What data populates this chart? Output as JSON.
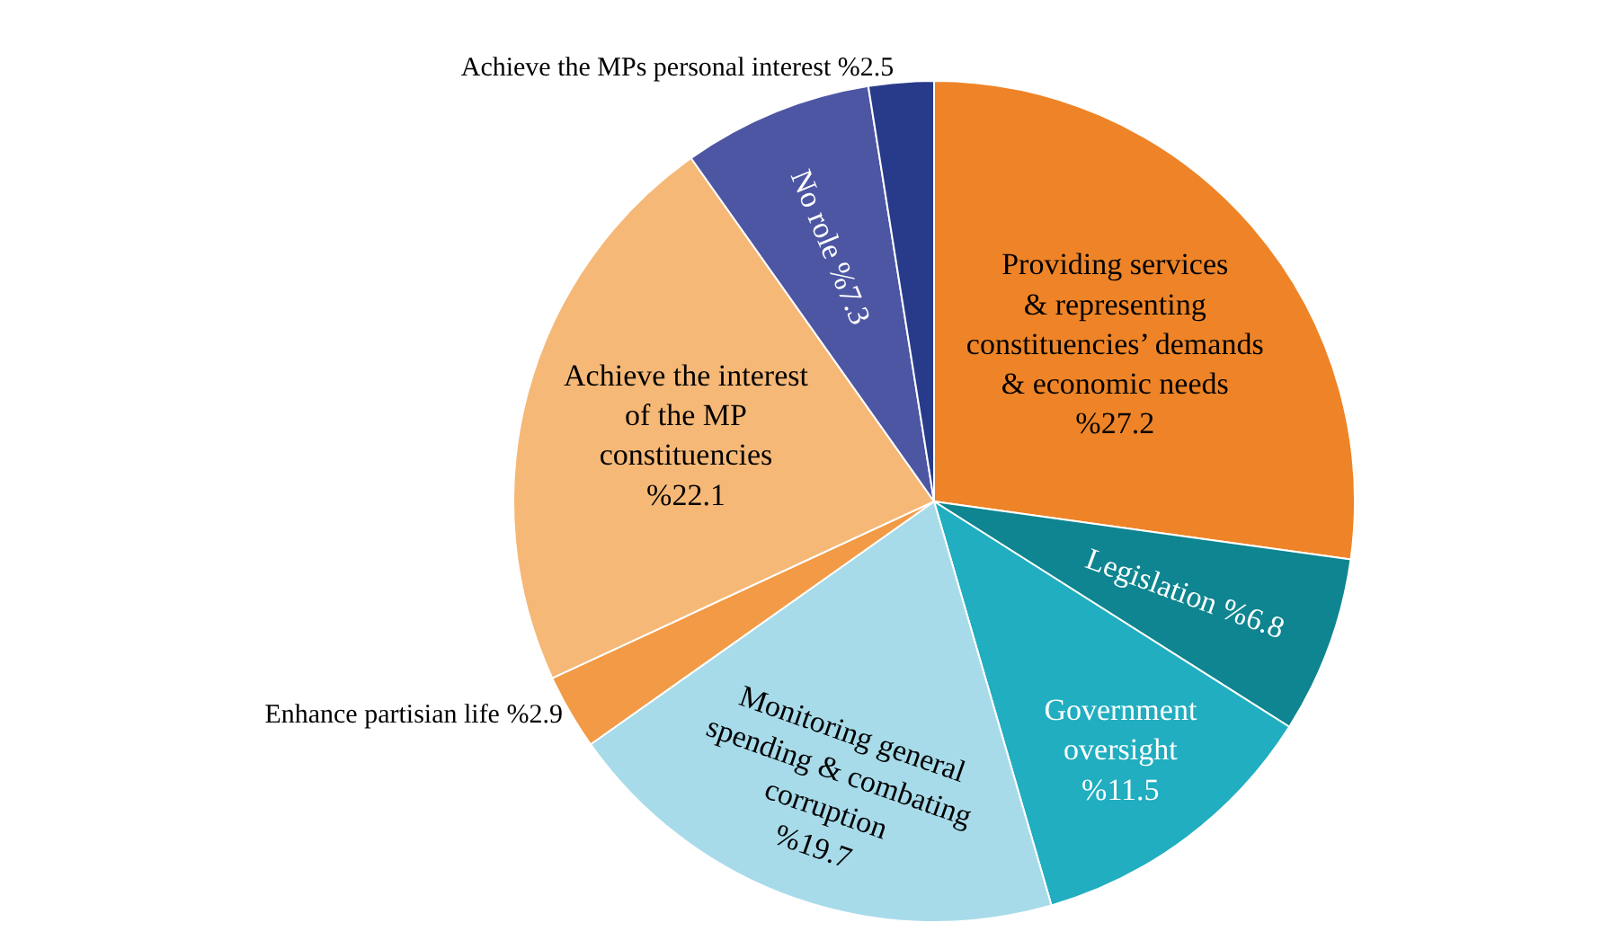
{
  "chart_data": {
    "type": "pie",
    "categories": [
      "Providing services\n& representing\nconstituencies’ demands\n& economic needs",
      "Legislation",
      "Government\noversight",
      "Monitoring general\nspending & combating\ncorruption",
      "Enhance partisian life",
      "Achieve the interest\nof the MP\nconstituencies",
      "No role",
      "Achieve the MPs personal interest"
    ],
    "values": [
      27.2,
      6.8,
      11.5,
      19.7,
      2.9,
      22.1,
      7.3,
      2.5
    ],
    "value_labels": [
      "%27.2",
      "%6.8",
      "%11.5",
      "%19.7",
      "%2.9",
      "%22.1",
      "%7.3",
      "%2.5"
    ],
    "colors": [
      "#ee8427",
      "#0e8590",
      "#20aec0",
      "#a8dbea",
      "#f29a45",
      "#f6b877",
      "#4c56a3",
      "#283b8a"
    ],
    "legend": false
  }
}
